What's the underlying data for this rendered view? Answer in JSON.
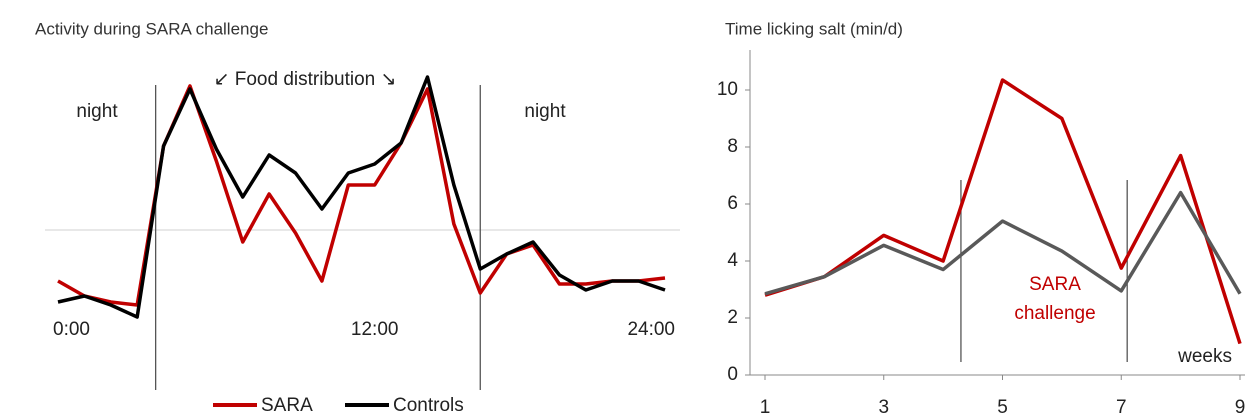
{
  "chart_data": [
    {
      "type": "line",
      "title": "Activity during SARA challenge",
      "x": [
        0,
        1,
        2,
        3,
        4,
        5,
        6,
        7,
        8,
        9,
        10,
        11,
        12,
        13,
        14,
        15,
        16,
        17,
        18,
        19,
        20,
        21,
        22,
        23
      ],
      "xlim": [
        0,
        23
      ],
      "xticks": [
        {
          "value": 0,
          "label": "0:00"
        },
        {
          "value": 12,
          "label": "12:00"
        },
        {
          "value": 24,
          "label": "24:00"
        }
      ],
      "ylim": [
        0,
        100
      ],
      "reference_line": 40,
      "night_boundaries": [
        3.7,
        16
      ],
      "night_label": "night",
      "annotation": "↙ Food distribution ↘",
      "legend": "bottom",
      "series": [
        {
          "name": "SARA",
          "color": "#c00000",
          "values": [
            23,
            18,
            16,
            15,
            68,
            88,
            63,
            36,
            52,
            39,
            23,
            55,
            55,
            69,
            87,
            42,
            19,
            32,
            35,
            22,
            22,
            23,
            23,
            24
          ]
        },
        {
          "name": "Controls",
          "color": "#000000",
          "values": [
            16,
            18,
            15,
            11,
            68,
            87,
            67,
            51,
            65,
            59,
            47,
            59,
            62,
            69,
            91,
            55,
            27,
            32,
            36,
            25,
            20,
            23,
            23,
            20
          ]
        }
      ]
    },
    {
      "type": "line",
      "title": "Time licking salt (min/d)",
      "x": [
        1,
        2,
        3,
        4,
        5,
        6,
        7,
        8,
        9
      ],
      "xlim": [
        1,
        9
      ],
      "xticks": [
        1,
        3,
        5,
        7,
        9
      ],
      "xlabel": "weeks",
      "ylim": [
        0,
        10
      ],
      "yticks": [
        0,
        2,
        4,
        6,
        8,
        10
      ],
      "phase_lines": [
        4.3,
        7.1
      ],
      "annotation": [
        "SARA",
        "challenge"
      ],
      "annotation_color": "#c00000",
      "series": [
        {
          "name": "SARA",
          "color": "#c00000",
          "values": [
            2.8,
            3.45,
            4.9,
            4.0,
            10.35,
            9.0,
            3.75,
            7.7,
            1.1
          ]
        },
        {
          "name": "Controls",
          "color": "#595959",
          "values": [
            2.85,
            3.45,
            4.55,
            3.7,
            5.4,
            4.35,
            2.95,
            6.4,
            2.85
          ]
        }
      ]
    }
  ]
}
